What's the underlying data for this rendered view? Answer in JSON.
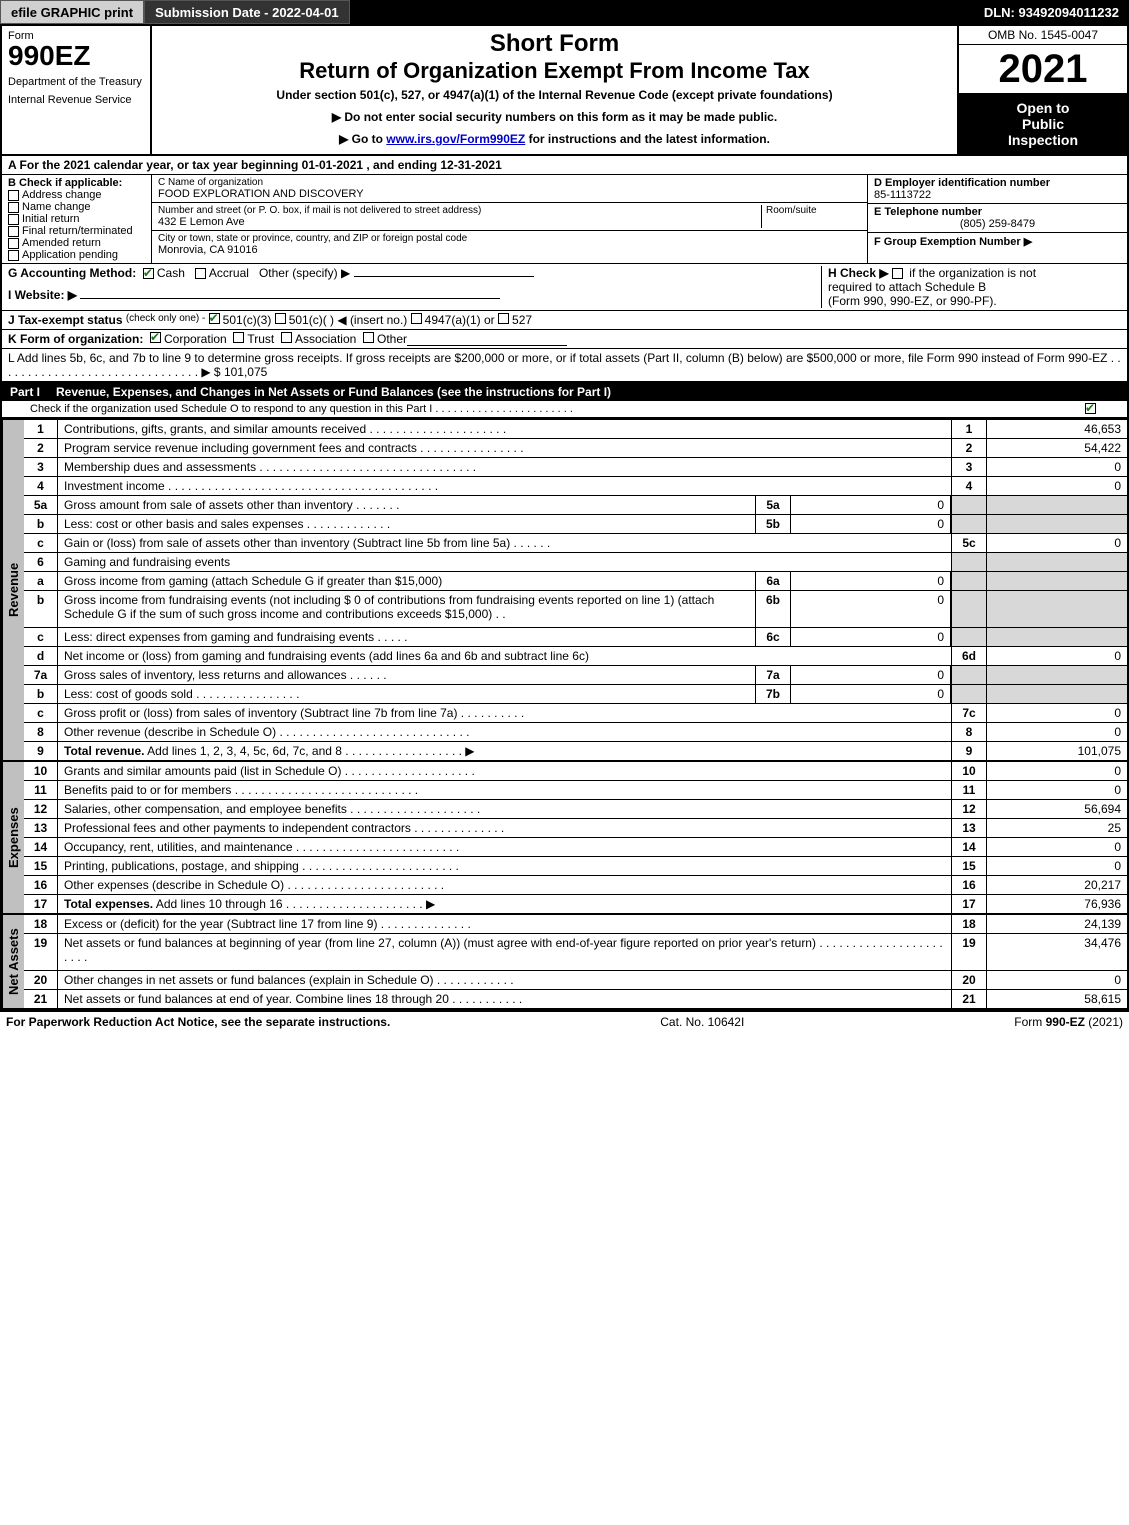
{
  "topbar": {
    "efile_label": "efile GRAPHIC print",
    "submission_label": "Submission Date - 2022-04-01",
    "dln_label": "DLN: 93492094011232"
  },
  "header": {
    "form_word": "Form",
    "form_number": "990EZ",
    "dept_line1": "Department of the Treasury",
    "dept_line2": "Internal Revenue Service",
    "short_form": "Short Form",
    "title": "Return of Organization Exempt From Income Tax",
    "subtitle": "Under section 501(c), 527, or 4947(a)(1) of the Internal Revenue Code (except private foundations)",
    "note1": "▶ Do not enter social security numbers on this form as it may be made public.",
    "note2": "▶ Go to www.irs.gov/Form990EZ for instructions and the latest information.",
    "omb": "OMB No. 1545-0047",
    "year": "2021",
    "publine1": "Open to",
    "publine2": "Public",
    "publine3": "Inspection"
  },
  "sectionA": {
    "text": "A  For the 2021 calendar year, or tax year beginning 01-01-2021 , and ending 12-31-2021"
  },
  "sectionB": {
    "label": "B  Check if applicable:",
    "opts": [
      "Address change",
      "Name change",
      "Initial return",
      "Final return/terminated",
      "Amended return",
      "Application pending"
    ]
  },
  "sectionC": {
    "name_label": "C Name of organization",
    "name_value": "FOOD EXPLORATION AND DISCOVERY",
    "street_label": "Number and street (or P. O. box, if mail is not delivered to street address)",
    "room_label": "Room/suite",
    "street_value": "432 E Lemon Ave",
    "city_label": "City or town, state or province, country, and ZIP or foreign postal code",
    "city_value": "Monrovia, CA  91016"
  },
  "sectionD": {
    "label": "D Employer identification number",
    "value": "85-1113722"
  },
  "sectionE": {
    "label": "E Telephone number",
    "value": "(805) 259-8479"
  },
  "sectionF": {
    "label": "F Group Exemption Number   ▶",
    "value": ""
  },
  "rowG": {
    "label": "G Accounting Method:",
    "cash": "Cash",
    "accrual": "Accrual",
    "other": "Other (specify) ▶"
  },
  "rowH": {
    "label": "H  Check ▶",
    "text1": "if the organization is not",
    "text2": "required to attach Schedule B",
    "text3": "(Form 990, 990-EZ, or 990-PF)."
  },
  "rowI": {
    "label": "I Website: ▶",
    "value": ""
  },
  "rowJ": {
    "label": "J Tax-exempt status",
    "sub": "(check only one) -",
    "opt1": "501(c)(3)",
    "opt2": "501(c)(   ) ◀ (insert no.)",
    "opt3": "4947(a)(1) or",
    "opt4": "527"
  },
  "rowK": {
    "label": "K Form of organization:",
    "opts": [
      "Corporation",
      "Trust",
      "Association",
      "Other"
    ]
  },
  "rowL": {
    "text": "L Add lines 5b, 6c, and 7b to line 9 to determine gross receipts. If gross receipts are $200,000 or more, or if total assets (Part II, column (B) below) are $500,000 or more, file Form 990 instead of Form 990-EZ . . . . . . . . . . . . . . . . . . . . . . . . . . . . . . . ▶ $ 101,075"
  },
  "partI": {
    "tag": "Part I",
    "title": "Revenue, Expenses, and Changes in Net Assets or Fund Balances (see the instructions for Part I)",
    "sub": "Check if the organization used Schedule O to respond to any question in this Part I . . . . . . . . . . . . . . . . . . . . . . ."
  },
  "side_labels": {
    "revenue": "Revenue",
    "expenses": "Expenses",
    "netassets": "Net Assets"
  },
  "revenue_lines": [
    {
      "n": "1",
      "desc": "Contributions, gifts, grants, and similar amounts received . . . . . . . . . . . . . . . . . . . . .",
      "rn": "1",
      "rv": "46,653"
    },
    {
      "n": "2",
      "desc": "Program service revenue including government fees and contracts . . . . . . . . . . . . . . . .",
      "rn": "2",
      "rv": "54,422"
    },
    {
      "n": "3",
      "desc": "Membership dues and assessments . . . . . . . . . . . . . . . . . . . . . . . . . . . . . . . . .",
      "rn": "3",
      "rv": "0"
    },
    {
      "n": "4",
      "desc": "Investment income . . . . . . . . . . . . . . . . . . . . . . . . . . . . . . . . . . . . . . . . .",
      "rn": "4",
      "rv": "0"
    },
    {
      "n": "5a",
      "desc": "Gross amount from sale of assets other than inventory . . . . . . .",
      "mn": "5a",
      "mv": "0",
      "shade": true
    },
    {
      "n": "b",
      "desc": "Less: cost or other basis and sales expenses . . . . . . . . . . . . .",
      "mn": "5b",
      "mv": "0",
      "shade": true
    },
    {
      "n": "c",
      "desc": "Gain or (loss) from sale of assets other than inventory (Subtract line 5b from line 5a) . . . . . .",
      "rn": "5c",
      "rv": "0"
    },
    {
      "n": "6",
      "desc": "Gaming and fundraising events",
      "shade": true,
      "noval": true
    },
    {
      "n": "a",
      "desc": "Gross income from gaming (attach Schedule G if greater than $15,000)",
      "mn": "6a",
      "mv": "0",
      "shade": true
    },
    {
      "n": "b",
      "desc": "Gross income from fundraising events (not including $ 0 of contributions from fundraising events reported on line 1) (attach Schedule G if the sum of such gross income and contributions exceeds $15,000)    . .",
      "mn": "6b",
      "mv": "0",
      "shade": true,
      "tall": true
    },
    {
      "n": "c",
      "desc": "Less: direct expenses from gaming and fundraising events . . . . .",
      "mn": "6c",
      "mv": "0",
      "shade": true
    },
    {
      "n": "d",
      "desc": "Net income or (loss) from gaming and fundraising events (add lines 6a and 6b and subtract line 6c)",
      "rn": "6d",
      "rv": "0"
    },
    {
      "n": "7a",
      "desc": "Gross sales of inventory, less returns and allowances . . . . . .",
      "mn": "7a",
      "mv": "0",
      "shade": true
    },
    {
      "n": "b",
      "desc": "Less: cost of goods sold       . . . . . . . . . . . . . . . .",
      "mn": "7b",
      "mv": "0",
      "shade": true
    },
    {
      "n": "c",
      "desc": "Gross profit or (loss) from sales of inventory (Subtract line 7b from line 7a) . . . . . . . . . .",
      "rn": "7c",
      "rv": "0"
    },
    {
      "n": "8",
      "desc": "Other revenue (describe in Schedule O) . . . . . . . . . . . . . . . . . . . . . . . . . . . . .",
      "rn": "8",
      "rv": "0"
    },
    {
      "n": "9",
      "desc": "Total revenue. Add lines 1, 2, 3, 4, 5c, 6d, 7c, and 8  . . . . . . . . . . . . . . . . . .    ▶",
      "rn": "9",
      "rv": "101,075",
      "bold": true
    }
  ],
  "expense_lines": [
    {
      "n": "10",
      "desc": "Grants and similar amounts paid (list in Schedule O) . . . . . . . . . . . . . . . . . . . .",
      "rn": "10",
      "rv": "0"
    },
    {
      "n": "11",
      "desc": "Benefits paid to or for members      . . . . . . . . . . . . . . . . . . . . . . . . . . . .",
      "rn": "11",
      "rv": "0"
    },
    {
      "n": "12",
      "desc": "Salaries, other compensation, and employee benefits . . . . . . . . . . . . . . . . . . . .",
      "rn": "12",
      "rv": "56,694"
    },
    {
      "n": "13",
      "desc": "Professional fees and other payments to independent contractors . . . . . . . . . . . . . .",
      "rn": "13",
      "rv": "25"
    },
    {
      "n": "14",
      "desc": "Occupancy, rent, utilities, and maintenance . . . . . . . . . . . . . . . . . . . . . . . . .",
      "rn": "14",
      "rv": "0"
    },
    {
      "n": "15",
      "desc": "Printing, publications, postage, and shipping . . . . . . . . . . . . . . . . . . . . . . . .",
      "rn": "15",
      "rv": "0"
    },
    {
      "n": "16",
      "desc": "Other expenses (describe in Schedule O)     . . . . . . . . . . . . . . . . . . . . . . . .",
      "rn": "16",
      "rv": "20,217"
    },
    {
      "n": "17",
      "desc": "Total expenses. Add lines 10 through 16     . . . . . . . . . . . . . . . . . . . . .    ▶",
      "rn": "17",
      "rv": "76,936",
      "bold": true
    }
  ],
  "netasset_lines": [
    {
      "n": "18",
      "desc": "Excess or (deficit) for the year (Subtract line 17 from line 9)       . . . . . . . . . . . . . .",
      "rn": "18",
      "rv": "24,139"
    },
    {
      "n": "19",
      "desc": "Net assets or fund balances at beginning of year (from line 27, column (A)) (must agree with end-of-year figure reported on prior year's return) . . . . . . . . . . . . . . . . . . . . . . .",
      "rn": "19",
      "rv": "34,476",
      "tall": true
    },
    {
      "n": "20",
      "desc": "Other changes in net assets or fund balances (explain in Schedule O) . . . . . . . . . . . .",
      "rn": "20",
      "rv": "0"
    },
    {
      "n": "21",
      "desc": "Net assets or fund balances at end of year. Combine lines 18 through 20 . . . . . . . . . . .",
      "rn": "21",
      "rv": "58,615"
    }
  ],
  "footer": {
    "left": "For Paperwork Reduction Act Notice, see the separate instructions.",
    "center": "Cat. No. 10642I",
    "right": "Form 990-EZ (2021)"
  }
}
